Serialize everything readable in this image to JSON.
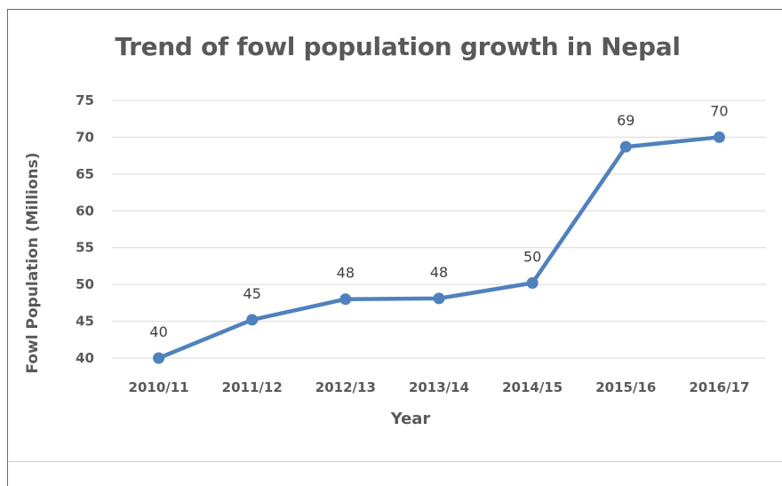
{
  "chart_data": {
    "type": "line",
    "title": "Trend of fowl population growth in Nepal",
    "xlabel": "Year",
    "ylabel": "Fowl Population (Millions)",
    "categories": [
      "2010/11",
      "2011/12",
      "2012/13",
      "2013/14",
      "2014/15",
      "2015/16",
      "2016/17"
    ],
    "series": [
      {
        "values": [
          40,
          45.2,
          48,
          48.1,
          50.2,
          68.7,
          70
        ],
        "data_labels": [
          "40",
          "45",
          "48",
          "48",
          "50",
          "69",
          "70"
        ],
        "color": "#4f81bd"
      }
    ],
    "ylim": [
      40,
      75
    ],
    "yticks": [
      40,
      45,
      50,
      55,
      60,
      65,
      70,
      75
    ],
    "grid": true,
    "legend": "none"
  }
}
